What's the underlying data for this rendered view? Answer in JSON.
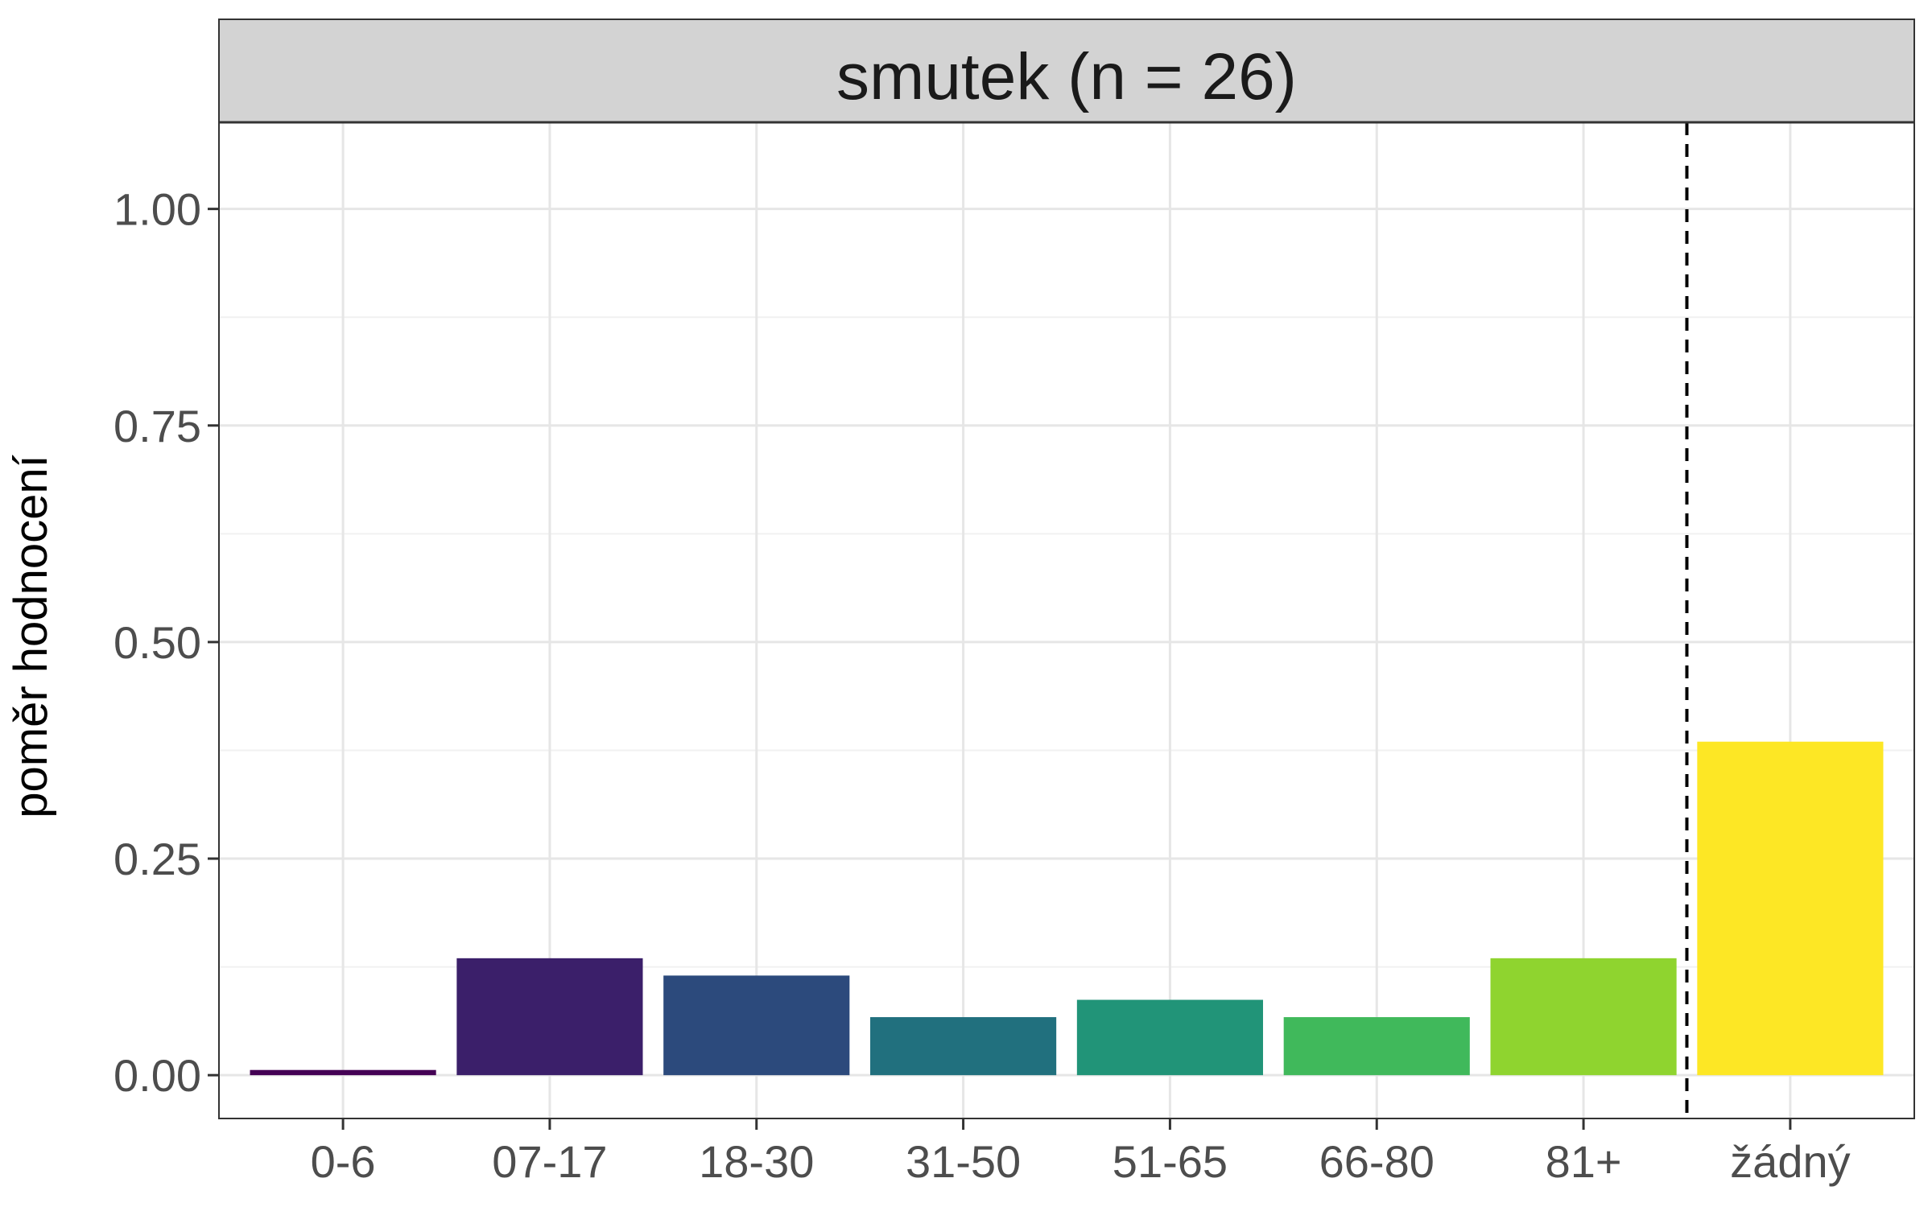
{
  "chart_data": {
    "type": "bar",
    "title": "smutek (n = 26)",
    "xlabel": "",
    "ylabel": "poměr hodnocení",
    "categories": [
      "0-6",
      "07-17",
      "18-30",
      "31-50",
      "51-65",
      "66-80",
      "81+",
      "žádný"
    ],
    "values": [
      0.006,
      0.135,
      0.115,
      0.067,
      0.087,
      0.067,
      0.135,
      0.385
    ],
    "colors": [
      "#440154",
      "#3B1F6A",
      "#2C4A7C",
      "#21707E",
      "#219478",
      "#40B95B",
      "#8FD42F",
      "#FDE725"
    ],
    "ylim": [
      -0.05,
      1.1
    ],
    "yticks": [
      0.0,
      0.25,
      0.5,
      0.75,
      1.0
    ],
    "ytick_labels": [
      "0.00",
      "0.25",
      "0.50",
      "0.75",
      "1.00"
    ],
    "grid": true,
    "legend": "none",
    "reference_line": {
      "between": [
        "81+",
        "žádný"
      ],
      "style": "dashed"
    }
  }
}
